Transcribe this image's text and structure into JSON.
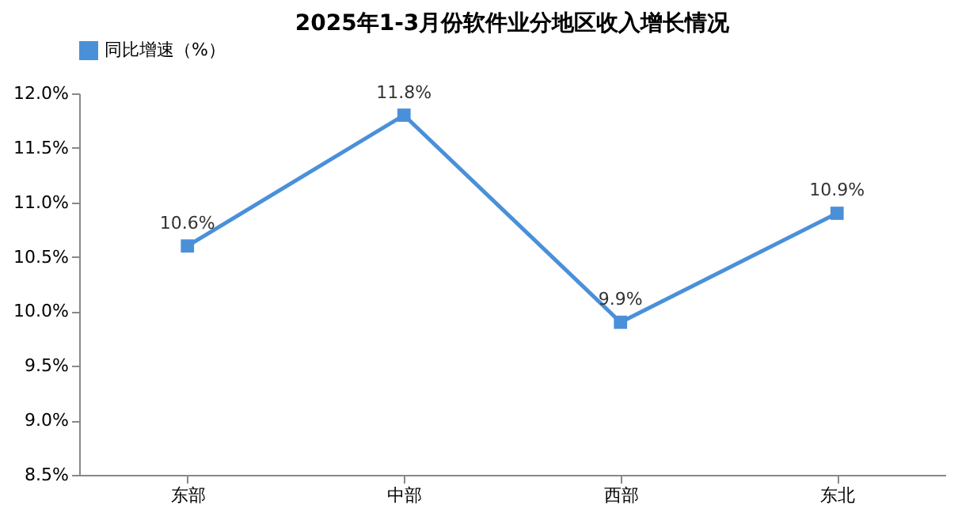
{
  "chart_data": {
    "type": "line",
    "title": "2025年1-3月份软件业分地区收入增长情况",
    "categories": [
      "东部",
      "中部",
      "西部",
      "东北"
    ],
    "series": [
      {
        "name": "同比增速（%）",
        "color": "#4a90d9",
        "values": [
          10.6,
          11.8,
          9.9,
          10.9
        ],
        "value_labels": [
          "10.6%",
          "11.8%",
          "9.9%",
          "10.9%"
        ]
      }
    ],
    "ylim": [
      8.5,
      12.0
    ],
    "yticks": [
      {
        "value": 8.5,
        "label": "8.5%"
      },
      {
        "value": 9.0,
        "label": "9.0%"
      },
      {
        "value": 9.5,
        "label": "9.5%"
      },
      {
        "value": 10.0,
        "label": "10.0%"
      },
      {
        "value": 10.5,
        "label": "10.5%"
      },
      {
        "value": 11.0,
        "label": "11.0%"
      },
      {
        "value": 11.5,
        "label": "11.5%"
      },
      {
        "value": 12.0,
        "label": "12.0%"
      }
    ],
    "grid": false,
    "legend": "top",
    "marker": "square",
    "line_style": "solid"
  }
}
